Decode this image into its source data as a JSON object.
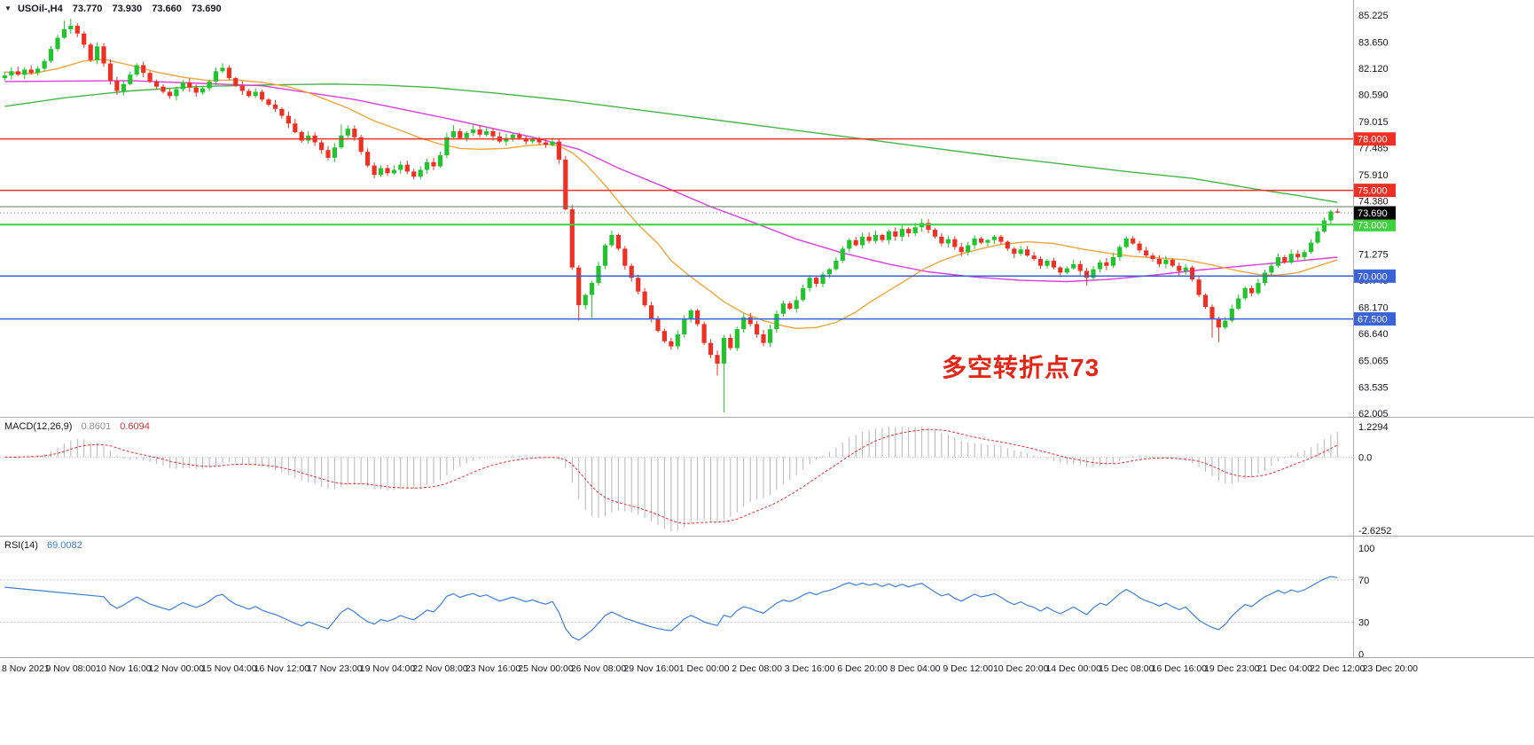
{
  "chart_data": {
    "type": "candlestick",
    "title": "USOil-,H4",
    "symbol": "USOil-",
    "timeframe": "H4",
    "ohlc_header": {
      "open": "73.770",
      "high": "73.930",
      "low": "73.660",
      "close": "73.690"
    },
    "icons": {
      "chevron_down": "▼"
    },
    "price_axis": {
      "labels": [
        85.225,
        83.65,
        82.12,
        80.59,
        79.015,
        77.485,
        75.91,
        74.38,
        71.275,
        69.745,
        68.17,
        66.64,
        65.065,
        63.535,
        62.005
      ]
    },
    "time_axis": {
      "labels": [
        "8 Nov 2021",
        "9 Nov 08:00",
        "10 Nov 16:00",
        "12 Nov 00:00",
        "15 Nov 04:00",
        "16 Nov 12:00",
        "17 Nov 23:00",
        "19 Nov 04:00",
        "22 Nov 08:00",
        "23 Nov 16:00",
        "25 Nov 00:00",
        "26 Nov 08:00",
        "29 Nov 16:00",
        "1 Dec 00:00",
        "2 Dec 08:00",
        "3 Dec 16:00",
        "6 Dec 20:00",
        "8 Dec 04:00",
        "9 Dec 12:00",
        "10 Dec 20:00",
        "14 Dec 00:00",
        "15 Dec 08:00",
        "16 Dec 16:00",
        "19 Dec 23:00",
        "21 Dec 04:00",
        "22 Dec 12:00",
        "23 Dec 20:00"
      ]
    },
    "candles": {
      "first_open": 81.55,
      "closes": [
        81.7,
        81.95,
        81.75,
        82.05,
        81.85,
        82.1,
        82.55,
        83.25,
        83.9,
        84.4,
        84.6,
        84.15,
        83.5,
        82.6,
        83.4,
        82.4,
        81.4,
        80.8,
        81.2,
        81.75,
        82.3,
        81.85,
        81.35,
        81.05,
        80.75,
        80.5,
        80.9,
        81.3,
        81.0,
        80.7,
        80.95,
        81.35,
        81.95,
        82.15,
        81.55,
        81.1,
        80.8,
        80.5,
        80.75,
        80.3,
        80.0,
        79.75,
        79.35,
        78.9,
        78.4,
        77.9,
        78.2,
        77.8,
        77.35,
        76.9,
        77.5,
        78.2,
        78.6,
        78.1,
        77.25,
        76.45,
        75.9,
        76.3,
        76.0,
        76.2,
        76.5,
        76.1,
        75.8,
        76.2,
        76.65,
        76.4,
        77.05,
        78.1,
        78.45,
        78.05,
        78.35,
        78.55,
        78.25,
        78.45,
        78.15,
        77.85,
        78.05,
        78.25,
        78.05,
        77.85,
        78.0,
        77.8,
        77.65,
        77.85,
        76.8,
        73.9,
        70.5,
        68.3,
        68.9,
        69.6,
        70.6,
        71.8,
        72.4,
        71.6,
        70.6,
        69.9,
        69.1,
        68.3,
        67.5,
        66.8,
        66.2,
        65.9,
        66.6,
        67.5,
        68.0,
        67.2,
        66.1,
        65.4,
        64.9,
        66.4,
        65.8,
        66.9,
        67.6,
        67.2,
        66.6,
        66.1,
        66.9,
        67.8,
        68.4,
        68.1,
        68.6,
        69.3,
        69.9,
        69.55,
        70.1,
        70.4,
        70.9,
        71.6,
        72.1,
        71.8,
        72.3,
        72.05,
        72.4,
        72.1,
        72.6,
        72.3,
        72.75,
        72.5,
        72.85,
        73.1,
        72.7,
        72.3,
        71.9,
        72.15,
        71.7,
        71.4,
        71.8,
        72.2,
        71.95,
        72.1,
        72.3,
        72.0,
        71.6,
        71.3,
        71.55,
        71.2,
        71.0,
        70.6,
        70.9,
        70.5,
        70.2,
        70.45,
        70.7,
        70.3,
        69.9,
        70.4,
        70.8,
        70.6,
        71.1,
        71.7,
        72.2,
        71.9,
        71.5,
        71.2,
        71.0,
        70.7,
        70.95,
        70.6,
        70.3,
        70.5,
        69.8,
        68.9,
        68.2,
        67.5,
        67.0,
        67.4,
        68.1,
        68.7,
        69.3,
        69.0,
        69.6,
        70.2,
        70.6,
        71.1,
        70.8,
        71.3,
        71.1,
        71.4,
        71.95,
        72.6,
        73.25,
        73.77,
        73.69
      ],
      "high_overrides": {
        "10": 84.9,
        "11": 85.0,
        "12": 84.75,
        "52": 78.85,
        "69": 78.8,
        "72": 78.85,
        "140": 73.35,
        "203": 73.93
      },
      "low_overrides": {
        "57": 75.7,
        "63": 75.65,
        "88": 67.4,
        "90": 67.55,
        "109": 64.2,
        "110": 62.05,
        "165": 69.45,
        "184": 66.4,
        "185": 66.15,
        "203": 73.66
      }
    },
    "moving_averages": [
      {
        "name": "ma-slow-line",
        "color": "#45b545",
        "points": [
          [
            1,
            79.9
          ],
          [
            10,
            80.4
          ],
          [
            20,
            80.8
          ],
          [
            30,
            81.05
          ],
          [
            40,
            81.15
          ],
          [
            50,
            81.2
          ],
          [
            58,
            81.15
          ],
          [
            66,
            81.0
          ],
          [
            76,
            80.65
          ],
          [
            86,
            80.25
          ],
          [
            96,
            79.75
          ],
          [
            106,
            79.25
          ],
          [
            116,
            78.75
          ],
          [
            124,
            78.35
          ],
          [
            132,
            77.95
          ],
          [
            141,
            77.5
          ],
          [
            151,
            77.0
          ],
          [
            161,
            76.55
          ],
          [
            171,
            76.1
          ],
          [
            181,
            75.7
          ],
          [
            191,
            75.05
          ],
          [
            197,
            74.7
          ],
          [
            203,
            74.3
          ]
        ]
      },
      {
        "name": "ma-medium-line",
        "color": "#dd3ddd",
        "points": [
          [
            1,
            81.35
          ],
          [
            20,
            81.4
          ],
          [
            40,
            81.1
          ],
          [
            54,
            80.3
          ],
          [
            68,
            79.2
          ],
          [
            81,
            78.1
          ],
          [
            88,
            77.4
          ],
          [
            94,
            76.3
          ],
          [
            101,
            75.2
          ],
          [
            108,
            74.05
          ],
          [
            115,
            73.05
          ],
          [
            121,
            72.15
          ],
          [
            128,
            71.35
          ],
          [
            135,
            70.7
          ],
          [
            141,
            70.25
          ],
          [
            148,
            69.95
          ],
          [
            155,
            69.75
          ],
          [
            162,
            69.68
          ],
          [
            168,
            69.8
          ],
          [
            175,
            70.05
          ],
          [
            182,
            70.35
          ],
          [
            189,
            70.6
          ],
          [
            196,
            70.85
          ],
          [
            203,
            71.1
          ]
        ]
      },
      {
        "name": "ma-fast-line",
        "color": "#eda63c",
        "points": [
          [
            1,
            81.9
          ],
          [
            5,
            81.8
          ],
          [
            9,
            82.1
          ],
          [
            13,
            82.55
          ],
          [
            16,
            82.65
          ],
          [
            20,
            82.3
          ],
          [
            24,
            81.9
          ],
          [
            28,
            81.6
          ],
          [
            32,
            81.4
          ],
          [
            36,
            81.45
          ],
          [
            40,
            81.3
          ],
          [
            44,
            81.05
          ],
          [
            47,
            80.7
          ],
          [
            50,
            80.25
          ],
          [
            53,
            79.8
          ],
          [
            57,
            79.05
          ],
          [
            61,
            78.5
          ],
          [
            64,
            78.05
          ],
          [
            67,
            77.7
          ],
          [
            70,
            77.45
          ],
          [
            73,
            77.4
          ],
          [
            77,
            77.45
          ],
          [
            80,
            77.6
          ],
          [
            83,
            77.7
          ],
          [
            85,
            77.6
          ],
          [
            87,
            77.2
          ],
          [
            89,
            76.55
          ],
          [
            92,
            75.3
          ],
          [
            94,
            74.35
          ],
          [
            97,
            73.0
          ],
          [
            100,
            71.9
          ],
          [
            102,
            70.9
          ],
          [
            105,
            69.95
          ],
          [
            108,
            69.1
          ],
          [
            110,
            68.5
          ],
          [
            113,
            67.85
          ],
          [
            116,
            67.4
          ],
          [
            119,
            67.1
          ],
          [
            121,
            66.95
          ],
          [
            124,
            67.0
          ],
          [
            127,
            67.3
          ],
          [
            130,
            67.9
          ],
          [
            132,
            68.45
          ],
          [
            135,
            69.15
          ],
          [
            138,
            69.85
          ],
          [
            140,
            70.35
          ],
          [
            143,
            70.9
          ],
          [
            146,
            71.3
          ],
          [
            149,
            71.6
          ],
          [
            152,
            71.85
          ],
          [
            156,
            72.0
          ],
          [
            160,
            71.9
          ],
          [
            164,
            71.6
          ],
          [
            168,
            71.35
          ],
          [
            172,
            71.15
          ],
          [
            176,
            71.05
          ],
          [
            180,
            70.95
          ],
          [
            184,
            70.65
          ],
          [
            188,
            70.3
          ],
          [
            191,
            70.1
          ],
          [
            194,
            70.05
          ],
          [
            197,
            70.2
          ],
          [
            199,
            70.45
          ],
          [
            203,
            70.95
          ]
        ]
      }
    ],
    "horizontal_lines": [
      {
        "price": 78.0,
        "label": "78.000",
        "color": "#f03024",
        "width": 1.5
      },
      {
        "price": 75.0,
        "label": "75.000",
        "color": "#f03024",
        "width": 1.5
      },
      {
        "price": 74.05,
        "label": "",
        "color": "#5d7a5d",
        "width": 1
      },
      {
        "price": 73.0,
        "label": "73.000",
        "color": "#3ed13e",
        "width": 2
      },
      {
        "price": 70.0,
        "label": "70.000",
        "color": "#3a62d9",
        "width": 1.5
      },
      {
        "price": 67.5,
        "label": "67.500",
        "color": "#3a62d9",
        "width": 1.5
      }
    ],
    "current_price": {
      "value": 73.69,
      "label": "73.690",
      "badge_color": "#000000"
    },
    "indicators": {
      "macd": {
        "name": "MACD(12,26,9)",
        "value_main": "0.8601",
        "value_signal": "0.6094",
        "periods": [
          12,
          26,
          9
        ],
        "scale_top": "1.2294",
        "scale_zero": "0.0",
        "scale_bottom": "-2.6252",
        "hist_color": "#b5b5b5",
        "signal_color": "#e03131"
      },
      "rsi": {
        "name": "RSI(14)",
        "value": "69.0082",
        "period": 14,
        "levels": [
          70,
          30
        ],
        "scale_labels": [
          100,
          70,
          30,
          0
        ],
        "line_color": "#3d7edb"
      }
    },
    "annotation": {
      "text": "多空转折点73",
      "color": "#e42617"
    },
    "colors": {
      "bull": "#22c32e",
      "bear": "#ee3124"
    }
  }
}
